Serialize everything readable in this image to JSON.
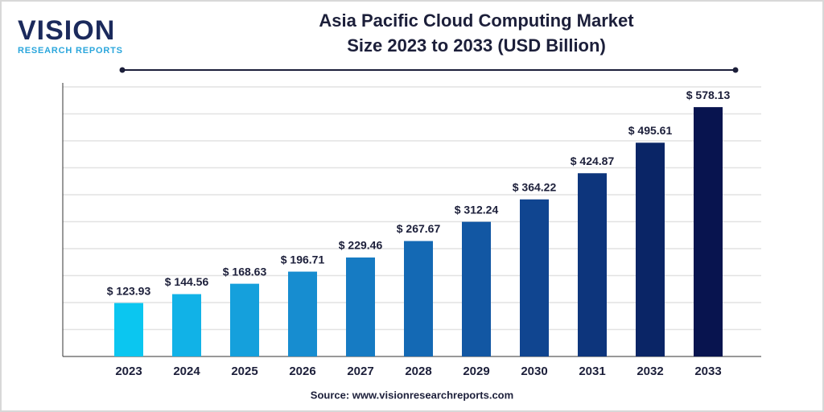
{
  "logo": {
    "name": "VISION",
    "tagline": "RESEARCH REPORTS"
  },
  "chart_data": {
    "type": "bar",
    "title": [
      "Asia Pacific Cloud Computing Market",
      "Size 2023 to 2033 (USD Billion)"
    ],
    "categories": [
      "2023",
      "2024",
      "2025",
      "2026",
      "2027",
      "2028",
      "2029",
      "2030",
      "2031",
      "2032",
      "2033"
    ],
    "values": [
      123.93,
      144.56,
      168.63,
      196.71,
      229.46,
      267.67,
      312.24,
      364.22,
      424.87,
      495.61,
      578.13
    ],
    "value_labels": [
      "$ 123.93",
      "$ 144.56",
      "$ 168.63",
      "$ 196.71",
      "$ 229.46",
      "$ 267.67",
      "$ 312.24",
      "$ 364.22",
      "$ 424.87",
      "$ 495.61",
      "$ 578.13"
    ],
    "colors": [
      "#0bc6f0",
      "#11b2e7",
      "#15a0dc",
      "#178dd0",
      "#167bc3",
      "#1469b4",
      "#1257a3",
      "#104590",
      "#0d357c",
      "#0a2566",
      "#08144f"
    ],
    "ylim": [
      0,
      625
    ],
    "grid": true,
    "source": "Source: www.visionresearchreports.com"
  }
}
